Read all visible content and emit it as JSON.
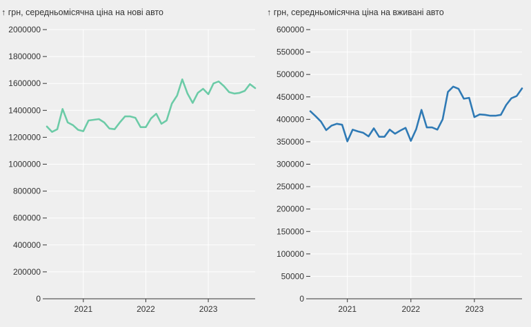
{
  "chart_data": [
    {
      "type": "line",
      "title": "↑ грн, середньомісячна ціна на нові авто",
      "xlabel": "",
      "ylabel": "",
      "ylim": [
        0,
        2000000
      ],
      "yticks": [
        0,
        200000,
        400000,
        600000,
        800000,
        1000000,
        1200000,
        1400000,
        1600000,
        1800000,
        2000000
      ],
      "yticklabels": [
        "0",
        "200000",
        "400000",
        "600000",
        "800000",
        "1000000",
        "1200000",
        "1400000",
        "1600000",
        "1800000",
        "2000000"
      ],
      "xlim": [
        "2020-06",
        "2023-10"
      ],
      "xticks": [
        "2021-01",
        "2022-01",
        "2023-01"
      ],
      "xticklabels": [
        "2021",
        "2022",
        "2023"
      ],
      "grid": true,
      "color": "#6ccba7",
      "series": [
        {
          "x": [
            "2020-06",
            "2020-07",
            "2020-08",
            "2020-09",
            "2020-10",
            "2020-11",
            "2020-12",
            "2021-01",
            "2021-02",
            "2021-03",
            "2021-04",
            "2021-05",
            "2021-06",
            "2021-07",
            "2021-08",
            "2021-09",
            "2021-10",
            "2021-11",
            "2021-12",
            "2022-01",
            "2022-02",
            "2022-03",
            "2022-04",
            "2022-05",
            "2022-06",
            "2022-07",
            "2022-08",
            "2022-09",
            "2022-10",
            "2022-11",
            "2022-12",
            "2023-01",
            "2023-02",
            "2023-03",
            "2023-04",
            "2023-05",
            "2023-06",
            "2023-07",
            "2023-08",
            "2023-09",
            "2023-10"
          ],
          "values": [
            1280000,
            1240000,
            1260000,
            1410000,
            1310000,
            1290000,
            1255000,
            1245000,
            1325000,
            1330000,
            1335000,
            1310000,
            1265000,
            1260000,
            1310000,
            1355000,
            1355000,
            1345000,
            1275000,
            1275000,
            1340000,
            1375000,
            1300000,
            1325000,
            1450000,
            1510000,
            1630000,
            1525000,
            1455000,
            1530000,
            1560000,
            1520000,
            1600000,
            1615000,
            1580000,
            1535000,
            1525000,
            1530000,
            1545000,
            1595000,
            1565000
          ]
        }
      ]
    },
    {
      "type": "line",
      "title": "↑ грн, середньомісячна ціна на вживані авто",
      "xlabel": "",
      "ylabel": "",
      "ylim": [
        0,
        600000
      ],
      "yticks": [
        0,
        50000,
        100000,
        150000,
        200000,
        250000,
        300000,
        350000,
        400000,
        450000,
        500000,
        550000,
        600000
      ],
      "yticklabels": [
        "0",
        "50000",
        "100000",
        "150000",
        "200000",
        "250000",
        "300000",
        "350000",
        "400000",
        "450000",
        "500000",
        "550000",
        "600000"
      ],
      "xlim": [
        "2020-06",
        "2023-10"
      ],
      "xticks": [
        "2021-01",
        "2022-01",
        "2023-01"
      ],
      "xticklabels": [
        "2021",
        "2022",
        "2023"
      ],
      "grid": true,
      "color": "#2f7ab5",
      "series": [
        {
          "x": [
            "2020-06",
            "2020-07",
            "2020-08",
            "2020-09",
            "2020-10",
            "2020-11",
            "2020-12",
            "2021-01",
            "2021-02",
            "2021-03",
            "2021-04",
            "2021-05",
            "2021-06",
            "2021-07",
            "2021-08",
            "2021-09",
            "2021-10",
            "2021-11",
            "2021-12",
            "2022-01",
            "2022-02",
            "2022-03",
            "2022-04",
            "2022-05",
            "2022-06",
            "2022-07",
            "2022-08",
            "2022-09",
            "2022-10",
            "2022-11",
            "2022-12",
            "2023-01",
            "2023-02",
            "2023-03",
            "2023-04",
            "2023-05",
            "2023-06",
            "2023-07",
            "2023-08",
            "2023-09",
            "2023-10"
          ],
          "values": [
            418000,
            407000,
            395000,
            376000,
            386000,
            390000,
            388000,
            351000,
            377000,
            373000,
            370000,
            362000,
            380000,
            361000,
            361000,
            377000,
            368000,
            375000,
            381000,
            352000,
            378000,
            421000,
            382000,
            382000,
            377000,
            400000,
            461000,
            473000,
            468000,
            446000,
            448000,
            405000,
            411000,
            410000,
            408000,
            408000,
            410000,
            432000,
            447000,
            452000,
            469000
          ]
        }
      ]
    }
  ]
}
